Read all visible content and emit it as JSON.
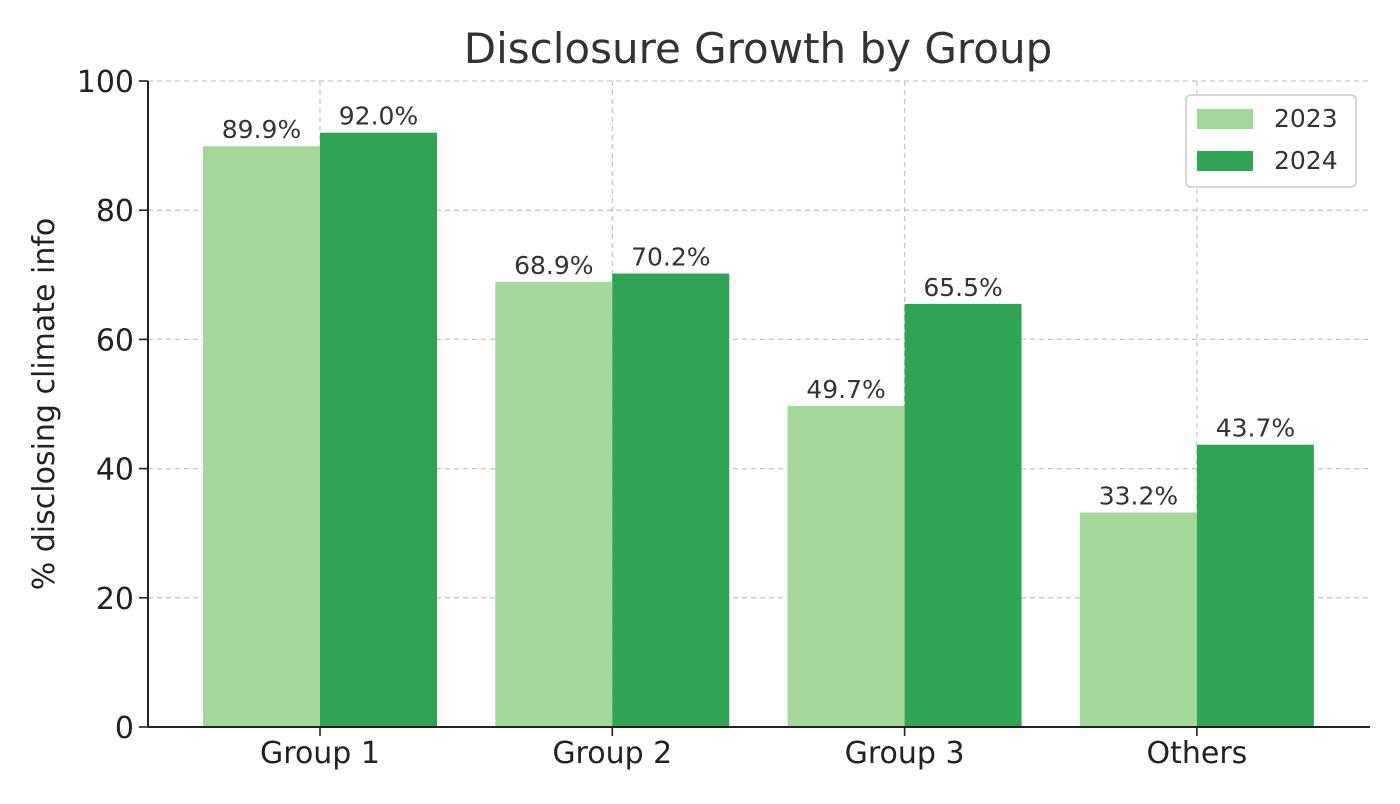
{
  "chart_data": {
    "type": "bar",
    "title": "Disclosure Growth by Group",
    "xlabel": "",
    "ylabel": "% disclosing climate info",
    "categories": [
      "Group 1",
      "Group 2",
      "Group 3",
      "Others"
    ],
    "series": [
      {
        "name": "2023",
        "color": "#a3d89a",
        "values": [
          89.9,
          68.9,
          49.7,
          33.2
        ],
        "labels": [
          "89.9%",
          "68.9%",
          "49.7%",
          "33.2%"
        ]
      },
      {
        "name": "2024",
        "color": "#31a354",
        "values": [
          92.0,
          70.2,
          65.5,
          43.7
        ],
        "labels": [
          "92.0%",
          "70.2%",
          "65.5%",
          "43.7%"
        ]
      }
    ],
    "ylim": [
      0,
      100
    ],
    "yticks": [
      0,
      20,
      40,
      60,
      80,
      100
    ],
    "ytick_labels": [
      "0",
      "20",
      "40",
      "60",
      "80",
      "100"
    ],
    "grid": true,
    "legend_position": "top-right"
  }
}
